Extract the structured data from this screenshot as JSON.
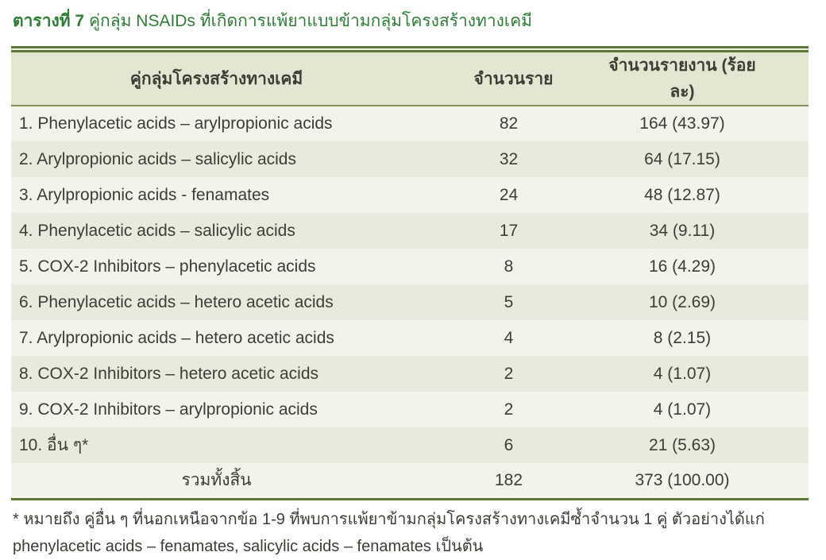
{
  "title": {
    "prefix": "ตารางที่ 7",
    "text": "คู่กลุ่ม NSAIDs ที่เกิดการแพ้ยาแบบข้ามกลุ่มโครงสร้างทางเคมี"
  },
  "table": {
    "columns": {
      "pair": "คู่กลุ่มโครงสร้างทางเคมี",
      "cases": "จำนวนราย",
      "reports": "จำนวนรายงาน (ร้อยละ)"
    },
    "rows": [
      {
        "pair": "1. Phenylacetic acids – arylpropionic acids",
        "cases": "82",
        "reports": "164 (43.97)"
      },
      {
        "pair": "2. Arylpropionic acids – salicylic acids",
        "cases": "32",
        "reports": "64 (17.15)"
      },
      {
        "pair": "3. Arylpropionic acids - fenamates",
        "cases": "24",
        "reports": "48 (12.87)"
      },
      {
        "pair": "4. Phenylacetic acids – salicylic acids",
        "cases": "17",
        "reports": "34 (9.11)"
      },
      {
        "pair": "5. COX-2 Inhibitors – phenylacetic acids",
        "cases": "8",
        "reports": "16 (4.29)"
      },
      {
        "pair": "6. Phenylacetic acids – hetero acetic acids",
        "cases": "5",
        "reports": "10 (2.69)"
      },
      {
        "pair": "7. Arylpropionic acids – hetero acetic acids",
        "cases": "4",
        "reports": "8 (2.15)"
      },
      {
        "pair": "8. COX-2 Inhibitors – hetero acetic acids",
        "cases": "2",
        "reports": "4 (1.07)"
      },
      {
        "pair": "9. COX-2 Inhibitors – arylpropionic acids",
        "cases": "2",
        "reports": "4 (1.07)"
      },
      {
        "pair": "10. อื่น ๆ*",
        "cases": "6",
        "reports": "21 (5.63)"
      }
    ],
    "total": {
      "label": "รวมทั้งสิ้น",
      "cases": "182",
      "reports": "373 (100.00)"
    }
  },
  "footnote": "* หมายถึง คู่อื่น ๆ ที่นอกเหนือจากข้อ 1-9 ที่พบการแพ้ยาข้ามกลุ่มโครงสร้างทางเคมีซ้ำจำนวน 1 คู่ ตัวอย่างได้แก่ phenylacetic acids – fenamates, salicylic acids – fenamates เป็นต้น",
  "colors": {
    "title_green": "#2e7d35",
    "table_border_green": "#5e7838",
    "header_underline_green": "#7f925e",
    "header_bg": "#e3e7d1",
    "row_odd_bg": "#f3f3eb",
    "row_even_bg": "#e9eadd",
    "body_text": "#3d3d36"
  }
}
